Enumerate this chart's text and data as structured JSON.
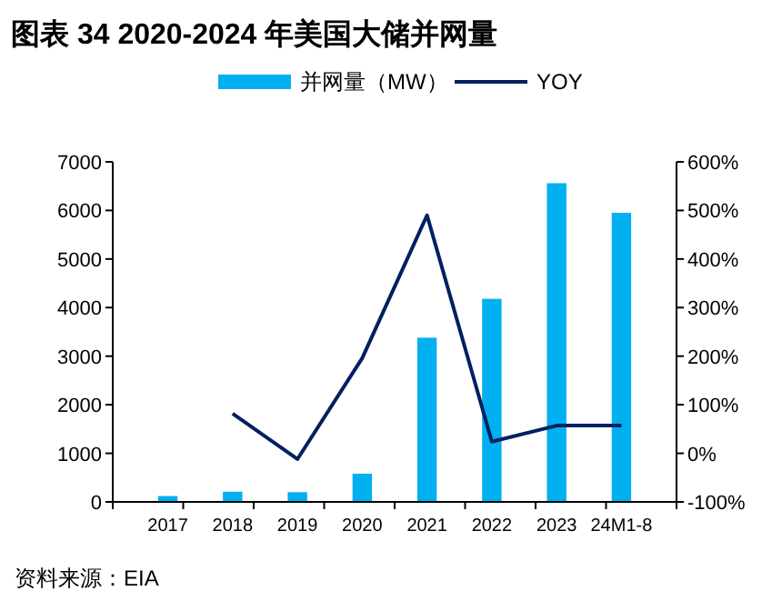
{
  "chart_data": {
    "type": "bar",
    "title": "图表 34 2020-2024 年美国大储并网量",
    "categories": [
      "2017",
      "2018",
      "2019",
      "2020",
      "2021",
      "2022",
      "2023",
      "24M1-8"
    ],
    "series": [
      {
        "name": "并网量（MW）",
        "color": "#00b0f0",
        "values": [
          120,
          210,
          200,
          580,
          3380,
          4180,
          6560,
          5950
        ]
      },
      {
        "name": "YOY",
        "type": "line",
        "axis": "y2",
        "color": "#002060",
        "values": [
          null,
          82,
          -12,
          196,
          490,
          24,
          57,
          57
        ]
      }
    ],
    "ylim": [
      0,
      7000
    ],
    "yticks": [
      0,
      1000,
      2000,
      3000,
      4000,
      5000,
      6000,
      7000
    ],
    "y2lim": [
      -100,
      600
    ],
    "y2ticks": [
      {
        "value": -100,
        "label": "-100%"
      },
      {
        "value": 0,
        "label": "0%"
      },
      {
        "value": 100,
        "label": "100%"
      },
      {
        "value": 200,
        "label": "200%"
      },
      {
        "value": 300,
        "label": "300%"
      },
      {
        "value": 400,
        "label": "400%"
      },
      {
        "value": 500,
        "label": "500%"
      },
      {
        "value": 600,
        "label": "600%"
      }
    ],
    "legend": "top",
    "grid": false,
    "annotations": [
      "资料来源：EIA"
    ]
  }
}
